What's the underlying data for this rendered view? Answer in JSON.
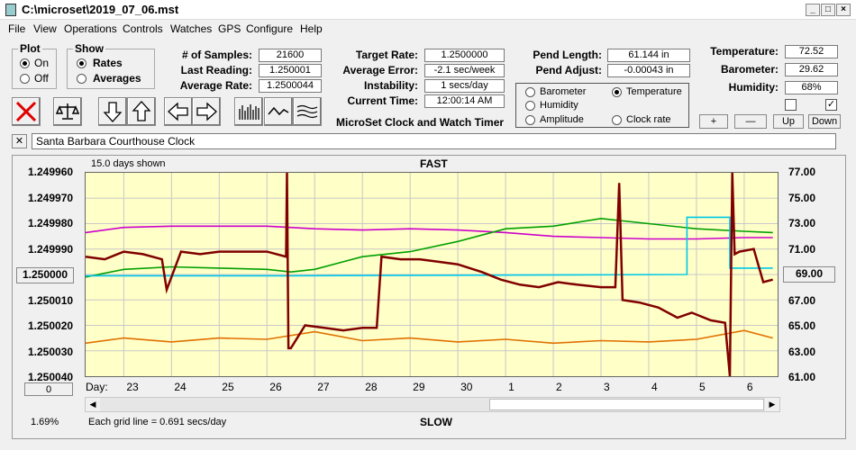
{
  "window": {
    "title": "C:\\microset\\2019_07_06.mst"
  },
  "menu": [
    "File",
    "View",
    "Operations",
    "Controls",
    "Watches",
    "GPS",
    "Configure",
    "Help"
  ],
  "plot_group": {
    "title": "Plot",
    "options": [
      "On",
      "Off"
    ],
    "selected": "On"
  },
  "show_group": {
    "title": "Show",
    "options": [
      "Rates",
      "Averages"
    ],
    "selected": "Rates"
  },
  "stats": {
    "samples_label": "# of Samples:",
    "samples": "21600",
    "last_reading_label": "Last Reading:",
    "last_reading": "1.250001",
    "average_rate_label": "Average Rate:",
    "average_rate": "1.2500044",
    "target_rate_label": "Target Rate:",
    "target_rate": "1.2500000",
    "average_error_label": "Average Error:",
    "average_error": "-2.1 sec/week",
    "instability_label": "Instability:",
    "instability": "1 secs/day",
    "current_time_label": "Current Time:",
    "current_time": "12:00:14 AM",
    "pend_length_label": "Pend Length:",
    "pend_length": "61.144 in",
    "pend_adjust_label": "Pend Adjust:",
    "pend_adjust": "-0.00043 in",
    "temperature_label": "Temperature:",
    "temperature": "72.52",
    "barometer_label": "Barometer:",
    "barometer": "29.62",
    "humidity_label": "Humidity:",
    "humidity": "68%"
  },
  "app_caption": "MicroSet Clock and Watch Timer",
  "overlay_options": {
    "items": [
      {
        "label": "Barometer",
        "color": "#e07000",
        "selected": false
      },
      {
        "label": "Temperature",
        "color": "#00a000",
        "selected": true
      },
      {
        "label": "Humidity",
        "color": "#cc00cc",
        "selected": false
      },
      {
        "label": "Amplitude",
        "color": "#00c8e8",
        "selected": false
      },
      {
        "label": "Clock rate",
        "color": "#800000",
        "selected": false
      }
    ]
  },
  "small_buttons": {
    "plus": "+",
    "minus": "—",
    "up": "Up",
    "down": "Down"
  },
  "checkboxes": [
    {
      "checked": false
    },
    {
      "checked": true
    }
  ],
  "clock_name": {
    "close": "✕",
    "value": "Santa Barbara Courthouse Clock"
  },
  "graph": {
    "days_shown": "15.0 days shown",
    "fast_label": "FAST",
    "slow_label": "SLOW",
    "grid_note": "Each grid line = 0.691 secs/day",
    "center_value": "1.250000",
    "right_marker": "69.00",
    "left_bottom_button": "0",
    "percent": "1.69%",
    "day_label": "Day:"
  },
  "chart_data": {
    "type": "line",
    "x_label": "Day:",
    "x_ticks": [
      "23",
      "24",
      "25",
      "26",
      "27",
      "28",
      "29",
      "30",
      "1",
      "2",
      "3",
      "4",
      "5",
      "6"
    ],
    "y_left_ticks": [
      "1.249960",
      "1.249970",
      "1.249980",
      "1.249990",
      "1.250000",
      "1.250010",
      "1.250020",
      "1.250030",
      "1.250040"
    ],
    "y_left_range": [
      1.24996,
      1.25004
    ],
    "y_right_ticks": [
      "77.00",
      "75.00",
      "73.00",
      "71.00",
      "69.00",
      "67.00",
      "65.00",
      "63.00",
      "61.00"
    ],
    "y_right_range": [
      61,
      77
    ],
    "series": [
      {
        "name": "Clock rate",
        "axis": "left",
        "color": "#800000",
        "x": [
          22.2,
          22.6,
          23.0,
          23.4,
          23.8,
          23.9,
          24.2,
          24.6,
          25.0,
          25.5,
          26.0,
          26.4,
          26.42,
          26.45,
          26.5,
          26.8,
          27.2,
          27.6,
          28.0,
          28.3,
          28.4,
          28.8,
          29.2,
          29.6,
          30.0,
          30.5,
          30.9,
          31.3,
          31.7,
          32.1,
          32.5,
          33.0,
          33.3,
          33.38,
          33.45,
          33.8,
          34.2,
          34.6,
          34.9,
          35.3,
          35.6,
          35.7,
          35.75,
          35.8,
          35.9,
          36.2,
          36.4,
          36.6
        ],
        "y": [
          1.249993,
          1.249994,
          1.249991,
          1.249992,
          1.249994,
          1.250006,
          1.249991,
          1.249992,
          1.249991,
          1.249991,
          1.249991,
          1.249993,
          1.24996,
          1.250029,
          1.250029,
          1.25002,
          1.250021,
          1.250022,
          1.250021,
          1.250021,
          1.249993,
          1.249994,
          1.249994,
          1.249995,
          1.249996,
          1.249999,
          1.250002,
          1.250004,
          1.250005,
          1.250003,
          1.250004,
          1.250005,
          1.250005,
          1.249964,
          1.25001,
          1.250011,
          1.250013,
          1.250017,
          1.250015,
          1.250018,
          1.250019,
          1.25004,
          1.24996,
          1.249992,
          1.249991,
          1.24999,
          1.250003,
          1.250002
        ]
      },
      {
        "name": "Temperature",
        "axis": "right",
        "color": "#00a000",
        "x": [
          22.2,
          23.0,
          24.0,
          25.0,
          26.0,
          26.5,
          27.0,
          28.0,
          29.0,
          30.0,
          31.0,
          32.0,
          33.0,
          34.0,
          35.0,
          36.0,
          36.6
        ],
        "y": [
          68.8,
          69.4,
          69.6,
          69.5,
          69.4,
          69.2,
          69.4,
          70.4,
          70.8,
          71.6,
          72.6,
          72.8,
          73.4,
          73.0,
          72.6,
          72.4,
          72.3
        ]
      },
      {
        "name": "Humidity",
        "axis": "right",
        "color": "#cc00cc",
        "x": [
          22.2,
          23.0,
          24.0,
          25.0,
          26.0,
          27.0,
          28.0,
          29.0,
          30.0,
          31.0,
          32.0,
          33.0,
          34.0,
          35.0,
          36.0,
          36.6
        ],
        "y": [
          72.3,
          72.7,
          72.8,
          72.8,
          72.8,
          72.6,
          72.5,
          72.6,
          72.5,
          72.3,
          72.0,
          71.9,
          71.8,
          71.8,
          71.9,
          71.9
        ]
      },
      {
        "name": "Amplitude",
        "axis": "right",
        "color": "#00c8e8",
        "x": [
          22.2,
          26.4,
          26.5,
          34.8,
          34.8,
          35.7,
          35.7,
          36.6
        ],
        "y": [
          68.9,
          68.9,
          68.9,
          69.0,
          73.5,
          73.5,
          69.5,
          69.5
        ]
      },
      {
        "name": "Barometer",
        "axis": "right",
        "color": "#e07000",
        "x": [
          22.2,
          23.0,
          24.0,
          25.0,
          26.0,
          27.0,
          28.0,
          29.0,
          30.0,
          31.0,
          32.0,
          33.0,
          34.0,
          35.0,
          36.0,
          36.6
        ],
        "y": [
          63.6,
          64.0,
          63.7,
          64.0,
          63.9,
          64.5,
          63.8,
          64.0,
          63.7,
          63.9,
          63.6,
          63.8,
          63.7,
          63.9,
          64.6,
          64.0
        ]
      }
    ]
  }
}
